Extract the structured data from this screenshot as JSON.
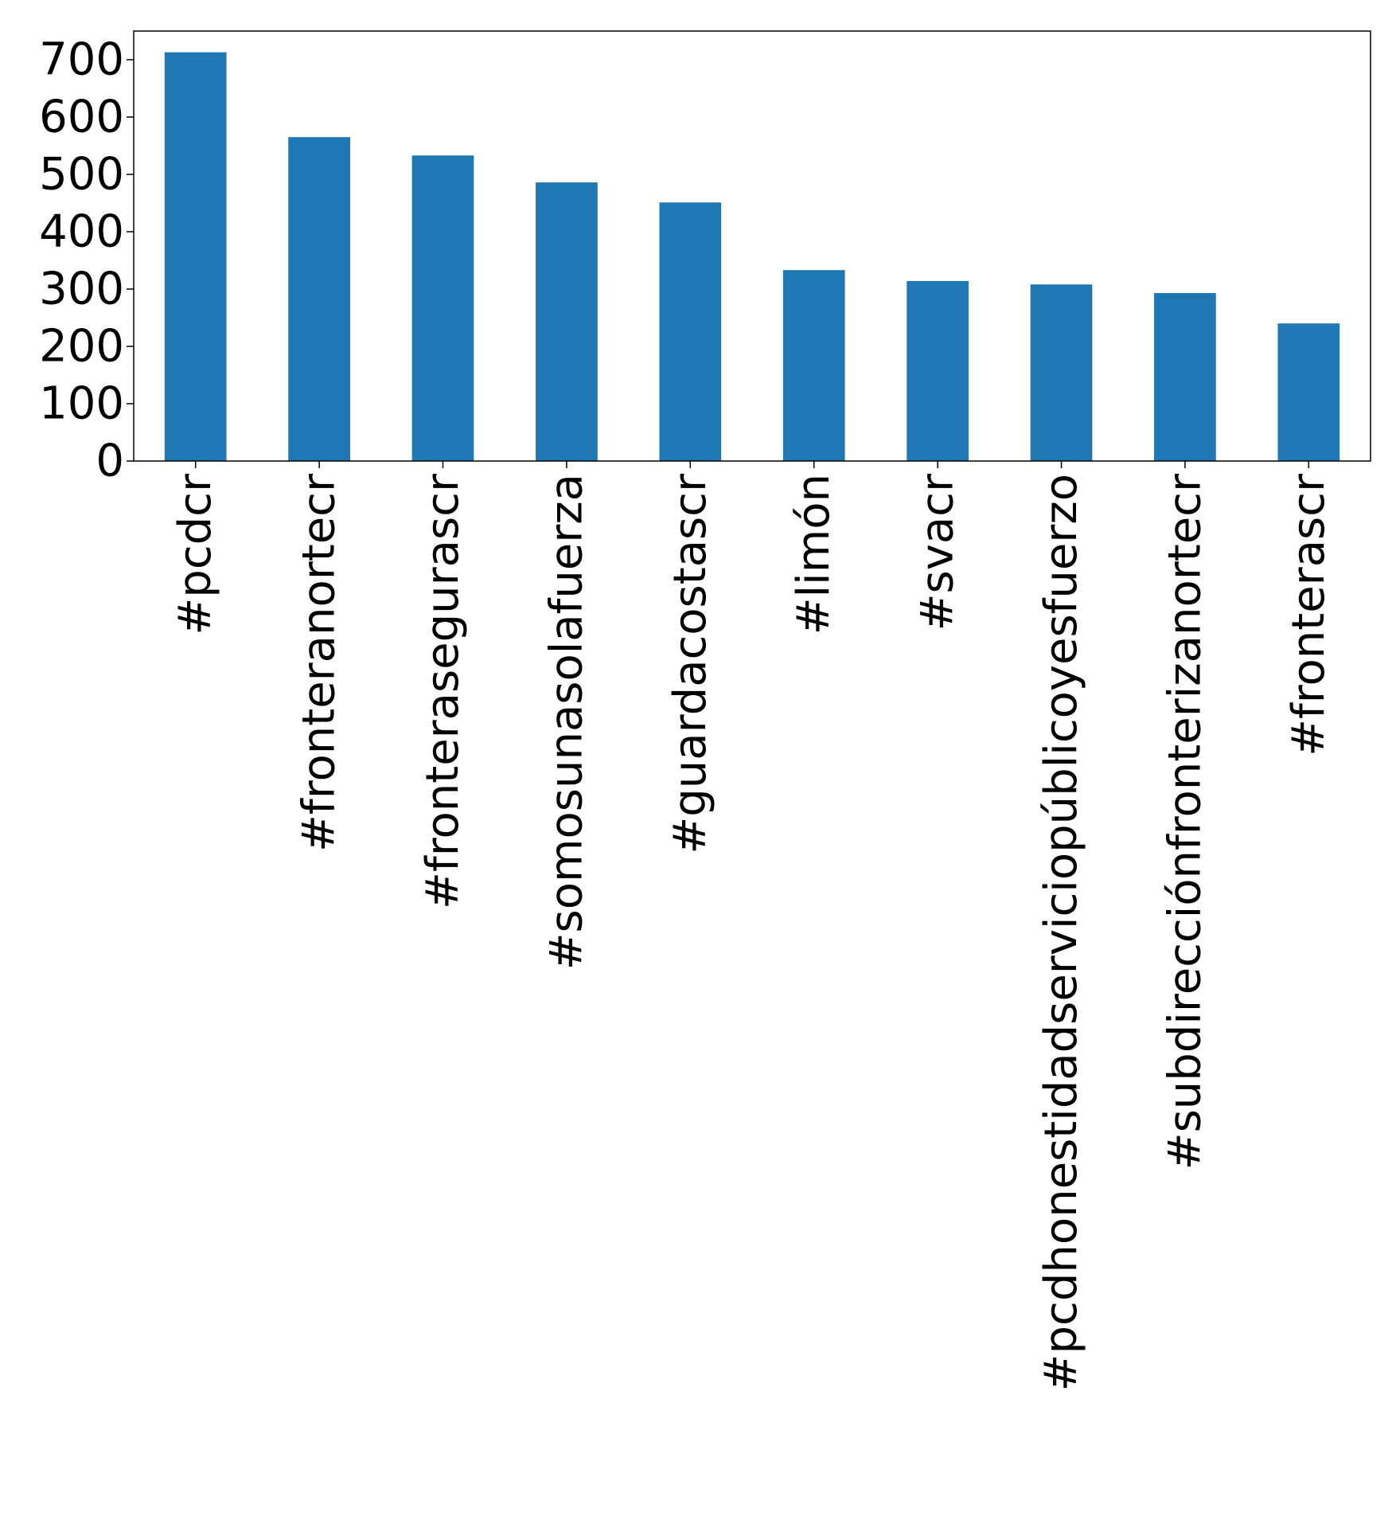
{
  "chart_data": {
    "type": "bar",
    "title": "",
    "xlabel": "",
    "ylabel": "",
    "categories": [
      "#pcdcr",
      "#fronteranortecr",
      "#fronterasegurascr",
      "#somosunasolafuerza",
      "#guardacostascr",
      "#limón",
      "#svacr",
      "#pcdhonestidadserviciopúblicoyesfuerzo",
      "#subdirecciónfronterizanortecr",
      "#fronterascr"
    ],
    "values": [
      713,
      565,
      533,
      486,
      451,
      333,
      314,
      308,
      293,
      240
    ],
    "ylim": [
      0,
      750
    ],
    "yticks": [
      0,
      100,
      200,
      300,
      400,
      500,
      600,
      700
    ],
    "grid": false,
    "legend": "none",
    "colors": {
      "bar": "#1f77b4",
      "axis": "#000000"
    }
  }
}
